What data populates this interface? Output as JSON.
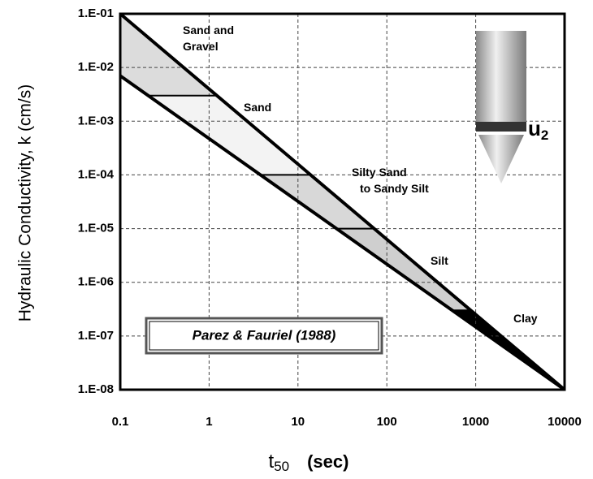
{
  "chart_data": {
    "type": "line",
    "y_label": "Hydraulic Conductivity, k (cm/s)",
    "x_label": {
      "main": "t",
      "sub": "50",
      "unit": "(sec)"
    },
    "log_x": true,
    "log_y": true,
    "grid": true,
    "xlim": [
      0.1,
      10000
    ],
    "ylim": [
      1e-08,
      0.1
    ],
    "xticks": [
      0.1,
      1,
      10,
      100,
      1000,
      10000
    ],
    "yticks": [
      {
        "value": 0.1,
        "label": "1.E-01"
      },
      {
        "value": 0.01,
        "label": "1.E-02"
      },
      {
        "value": 0.001,
        "label": "1.E-03"
      },
      {
        "value": 0.0001,
        "label": "1.E-04"
      },
      {
        "value": 1e-05,
        "label": "1.E-05"
      },
      {
        "value": 1e-06,
        "label": "1.E-06"
      },
      {
        "value": 1e-07,
        "label": "1.E-07"
      },
      {
        "value": 1e-08,
        "label": "1.E-08"
      }
    ],
    "lines": [
      {
        "x": [
          0.1,
          10000
        ],
        "y": [
          0.1,
          1e-08
        ]
      },
      {
        "x": [
          0.1,
          10000
        ],
        "y": [
          0.007,
          1e-08
        ]
      }
    ],
    "boundaries": [
      0.003,
      0.0001,
      1e-05,
      3e-07
    ],
    "zone_colors": [
      "#dcdcdc",
      "#f3f3f3",
      "#d8d8d8",
      "#cfcfcf",
      "#000000"
    ],
    "annotations": [
      [
        "Sand and",
        "Gravel"
      ],
      [
        "Sand"
      ],
      [
        "Silty Sand",
        "to Sandy Silt"
      ],
      [
        "Silt"
      ],
      [
        "Clay"
      ]
    ],
    "inset": "Parez & Fauriel (1988)",
    "probe_label": {
      "main": "u",
      "sub": "2"
    }
  }
}
